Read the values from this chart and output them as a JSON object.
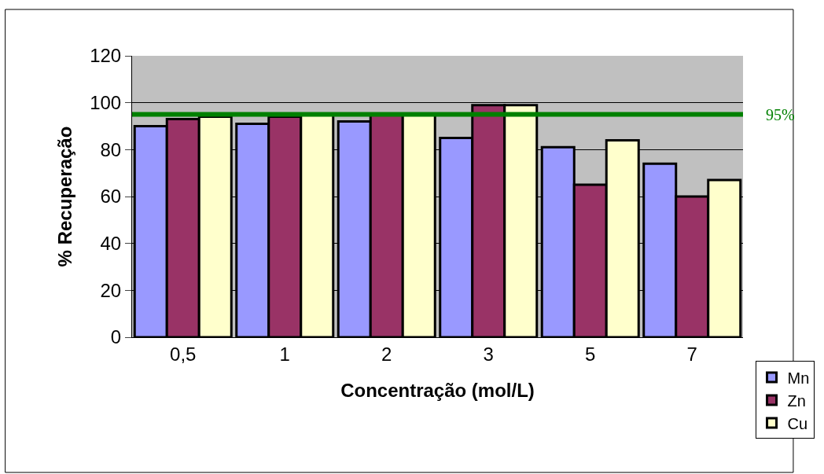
{
  "chart_data": {
    "type": "bar",
    "xlabel": "Concentração (mol/L)",
    "ylabel": "% Recuperação",
    "categories": [
      "0,5",
      "1",
      "2",
      "3",
      "5",
      "7"
    ],
    "series": [
      {
        "name": "Mn",
        "color": "#9999ff",
        "values": [
          90,
          91,
          92,
          85,
          81,
          74
        ]
      },
      {
        "name": "Zn",
        "color": "#993366",
        "values": [
          93,
          94,
          95,
          99,
          65,
          60
        ]
      },
      {
        "name": "Cu",
        "color": "#ffffcc",
        "values": [
          94,
          95,
          95,
          99,
          84,
          67
        ]
      }
    ],
    "ylim": [
      0,
      120
    ],
    "yticks": [
      0,
      20,
      40,
      60,
      80,
      100,
      120
    ],
    "grid": "y",
    "legend": "bottom right",
    "ref_lines": [
      {
        "axis": "y",
        "value": 95,
        "label": "95%",
        "color": "#008000"
      }
    ]
  }
}
